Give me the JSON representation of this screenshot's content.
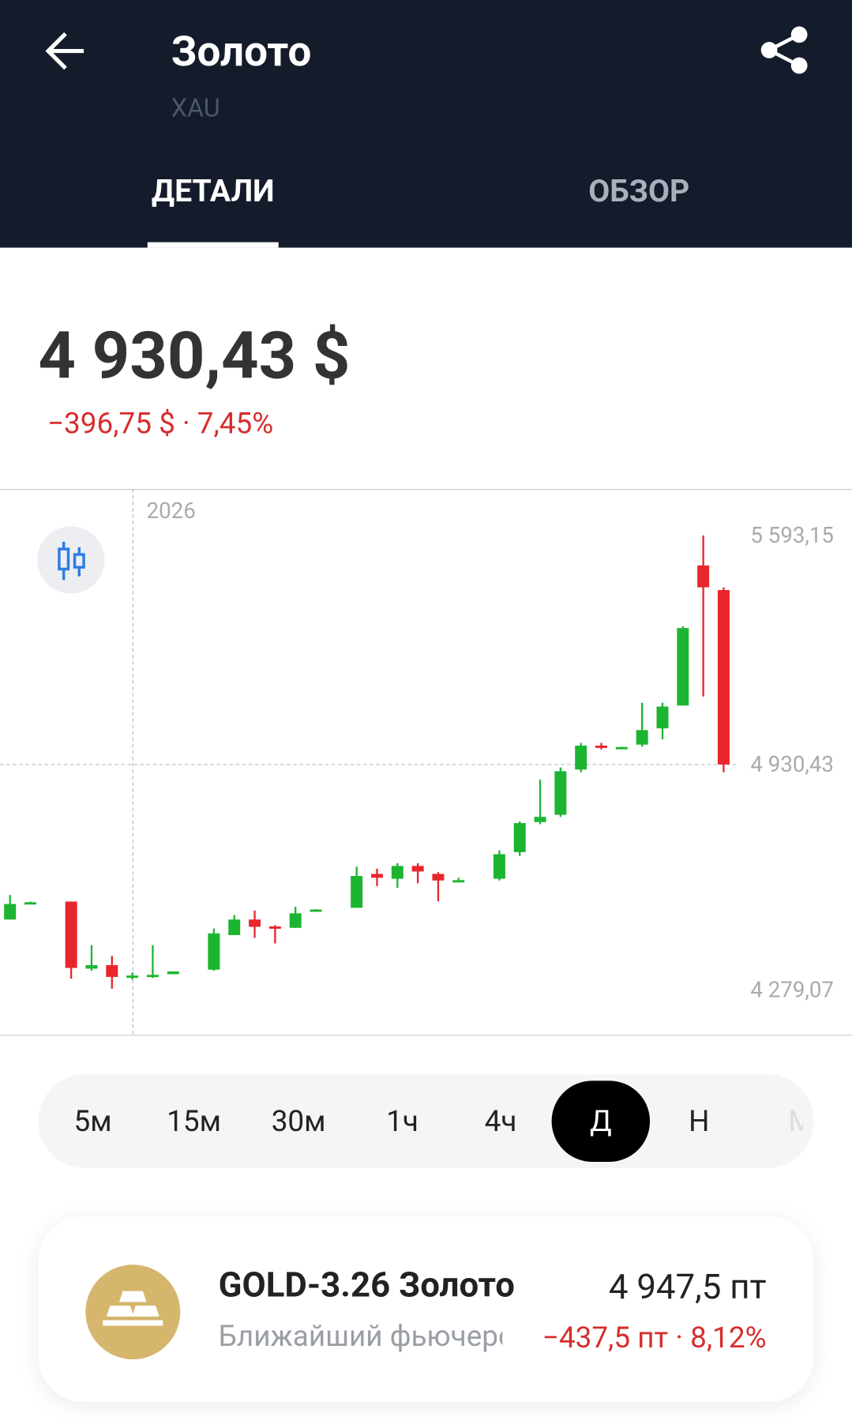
{
  "header": {
    "title": "Золото",
    "ticker": "XAU"
  },
  "tabs": [
    "ДЕТАЛИ",
    "ОБЗОР"
  ],
  "price": "4 930,43 $",
  "change": "−396,75 $ · 7,45%",
  "chart_data": {
    "type": "candlestick",
    "year_label": "2026",
    "open": [
      4482,
      4530,
      4534,
      4340,
      4350,
      4318,
      4320,
      4324,
      4337,
      4437,
      4482,
      4462,
      4458,
      4509,
      4516,
      4614,
      4600,
      4637,
      4614,
      4594,
      4600,
      4677,
      4764,
      4785,
      4916,
      4985,
      4980,
      4988,
      5035,
      5101,
      5506,
      5435
    ],
    "high": [
      4553,
      4534,
      4534,
      4408,
      4377,
      4329,
      4408,
      4332,
      4456,
      4495,
      4508,
      4466,
      4519,
      4512,
      4635,
      4629,
      4645,
      4645,
      4619,
      4603,
      4682,
      4766,
      4887,
      4922,
      4993,
      4993,
      4982,
      5109,
      5109,
      5330,
      5593.15,
      5443
    ],
    "low": [
      4482,
      4530,
      4311,
      4334,
      4282,
      4308,
      4313,
      4324,
      4334,
      4437,
      4429,
      4413,
      4458,
      4509,
      4516,
      4579,
      4574,
      4587,
      4535,
      4592,
      4595,
      4666,
      4758,
      4779,
      4908,
      4974,
      4978,
      4982,
      5003,
      5101,
      5127,
      4908
    ],
    "close": [
      4527,
      4532,
      4342,
      4350,
      4316,
      4320,
      4322,
      4332,
      4442,
      4482,
      4461,
      4460,
      4500,
      4511,
      4608,
      4603,
      4637,
      4621,
      4595,
      4596,
      4671,
      4761,
      4779,
      4911,
      4985,
      4980,
      4981,
      5030,
      5098,
      5325,
      5443,
      4930.43
    ],
    "up_color": "#1cb531",
    "down_color": "#e8262b",
    "ylim": [
      4147.4,
      5727.5
    ],
    "yticks": [
      {
        "value": 5593.15,
        "label": "5 593,15"
      },
      {
        "value": 4930.43,
        "label": "4 930,43"
      },
      {
        "value": 4279.07,
        "label": "4 279,07"
      }
    ]
  },
  "timeframes": [
    "5м",
    "15м",
    "30м",
    "1ч",
    "4ч",
    "Д",
    "Н",
    "М"
  ],
  "selected_timeframe": "Д",
  "futures": {
    "name": "GOLD-3.26 Золото",
    "subtitle": "Ближайший фьючерс",
    "price": "4 947,5 пт",
    "change": "−437,5 пт · 8,12%"
  }
}
